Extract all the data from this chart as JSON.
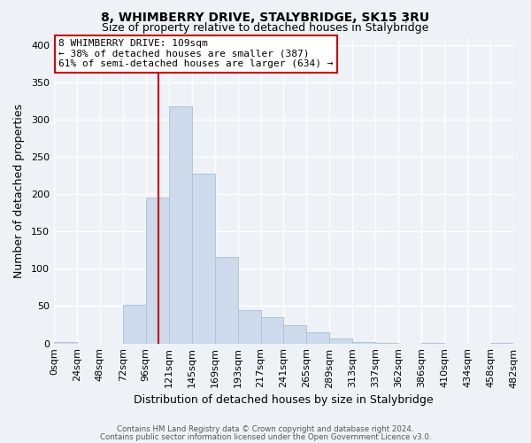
{
  "title": "8, WHIMBERRY DRIVE, STALYBRIDGE, SK15 3RU",
  "subtitle": "Size of property relative to detached houses in Stalybridge",
  "xlabel": "Distribution of detached houses by size in Stalybridge",
  "ylabel": "Number of detached properties",
  "bar_color": "#ccdaeb",
  "bar_edge_color": "#afc4d8",
  "background_color": "#eef2f7",
  "grid_color": "#ffffff",
  "bin_left_edges": [
    0,
    24,
    48,
    72,
    96,
    120,
    144,
    168,
    192,
    216,
    240,
    264,
    288,
    312,
    336,
    360,
    384,
    408,
    432,
    456
  ],
  "bin_width": 24,
  "bin_labels": [
    "0sqm",
    "24sqm",
    "48sqm",
    "72sqm",
    "96sqm",
    "121sqm",
    "145sqm",
    "169sqm",
    "193sqm",
    "217sqm",
    "241sqm",
    "265sqm",
    "289sqm",
    "313sqm",
    "337sqm",
    "362sqm",
    "386sqm",
    "410sqm",
    "434sqm",
    "458sqm",
    "482sqm"
  ],
  "bar_heights": [
    2,
    0,
    0,
    52,
    195,
    318,
    228,
    116,
    45,
    35,
    25,
    15,
    7,
    2,
    1,
    0,
    1,
    0,
    0,
    1
  ],
  "vline_x": 109,
  "vline_color": "#cc0000",
  "annotation_line1": "8 WHIMBERRY DRIVE: 109sqm",
  "annotation_line2": "← 38% of detached houses are smaller (387)",
  "annotation_line3": "61% of semi-detached houses are larger (634) →",
  "box_edge_color": "#cc0000",
  "footer_line1": "Contains HM Land Registry data © Crown copyright and database right 2024.",
  "footer_line2": "Contains public sector information licensed under the Open Government Licence v3.0.",
  "ylim": [
    0,
    410
  ],
  "xlim": [
    0,
    480
  ],
  "yticks": [
    0,
    50,
    100,
    150,
    200,
    250,
    300,
    350,
    400
  ],
  "title_fontsize": 10,
  "subtitle_fontsize": 9,
  "ylabel_fontsize": 9,
  "xlabel_fontsize": 9,
  "tick_fontsize": 8,
  "annot_fontsize": 8
}
